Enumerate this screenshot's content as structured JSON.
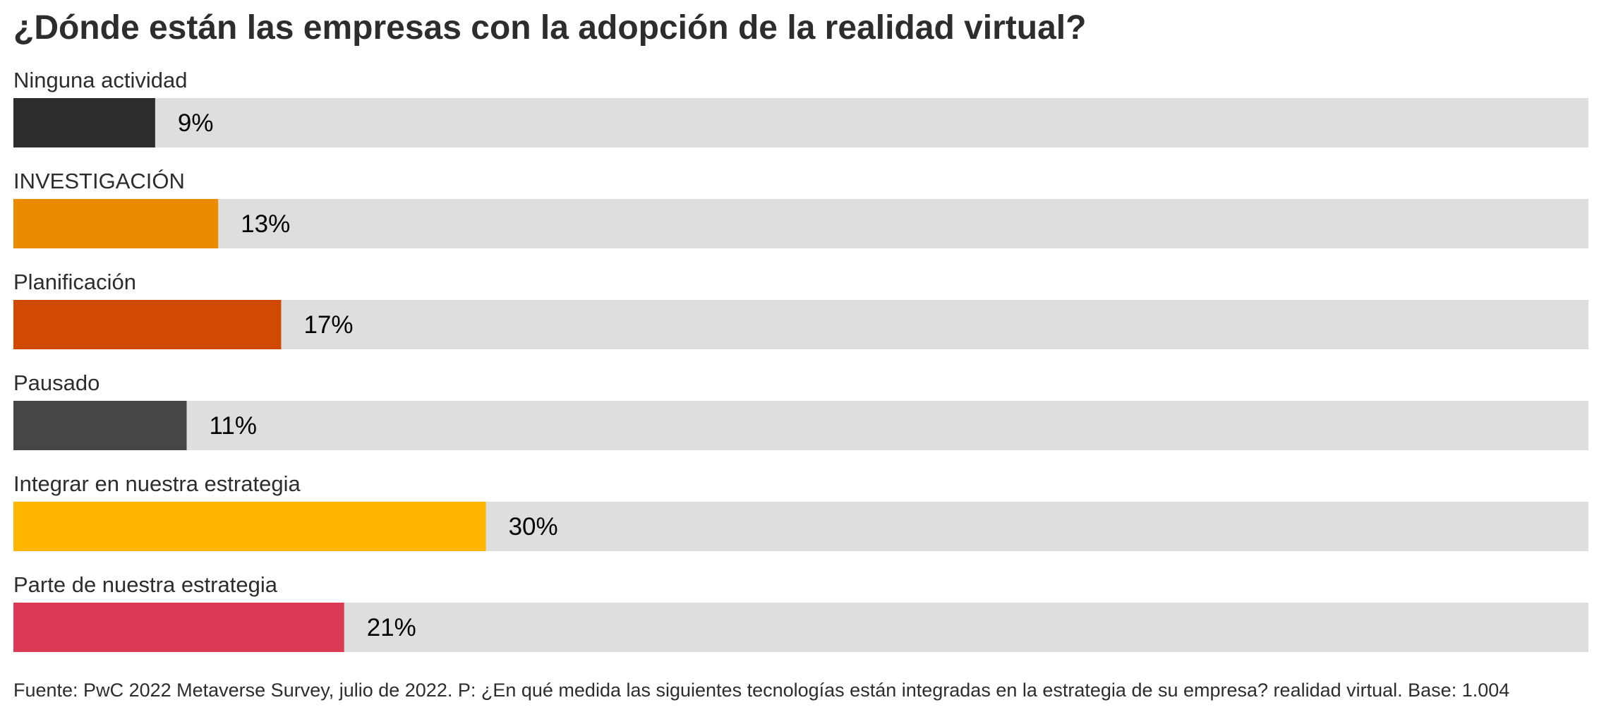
{
  "chart_data": {
    "type": "bar",
    "orientation": "horizontal",
    "title": "¿Dónde están las empresas con la adopción de la realidad virtual?",
    "categories": [
      "Ninguna actividad",
      "INVESTIGACIÓN",
      "Planificación",
      "Pausado",
      "Integrar en nuestra estrategia",
      "Parte de nuestra estrategia"
    ],
    "values": [
      9,
      13,
      17,
      11,
      30,
      21
    ],
    "value_labels": [
      "9%",
      "13%",
      "17%",
      "11%",
      "30%",
      "21%"
    ],
    "colors": [
      "#2d2d2d",
      "#eb8c00",
      "#d04a02",
      "#464646",
      "#ffb600",
      "#db3a55"
    ],
    "track_color": "#dedede",
    "xlim": [
      0,
      100
    ],
    "grid": false,
    "legend": "none"
  },
  "source": "Fuente: PwC 2022 Metaverse Survey, julio de 2022. P: ¿En qué medida las siguientes tecnologías están integradas en la estrategia de su empresa? realidad virtual. Base: 1.004"
}
